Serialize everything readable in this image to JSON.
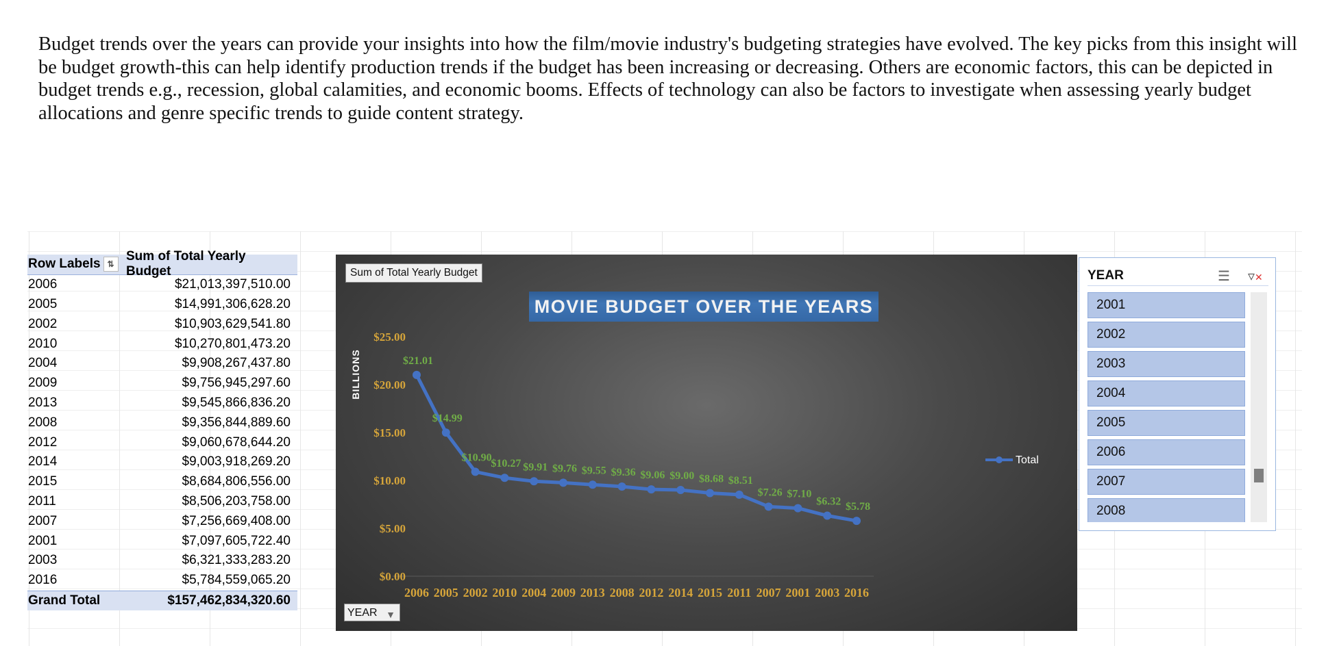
{
  "intro_text": "Budget trends over the years can provide your insights into how the film/movie industry's budgeting strategies have evolved. The key picks from this insight will be budget growth-this can help identify production trends if the budget has been increasing or decreasing. Others are economic factors, this can be depicted in budget trends e.g., recession, global calamities, and economic booms. Effects of technology can also be factors to investigate when assessing yearly budget allocations and genre specific trends to guide content strategy.",
  "pivot": {
    "header_row_labels": "Row Labels",
    "header_sum": "Sum of Total Yearly Budget",
    "rows": [
      {
        "year": "2006",
        "value": "$21,013,397,510.00"
      },
      {
        "year": "2005",
        "value": "$14,991,306,628.20"
      },
      {
        "year": "2002",
        "value": "$10,903,629,541.80"
      },
      {
        "year": "2010",
        "value": "$10,270,801,473.20"
      },
      {
        "year": "2004",
        "value": "$9,908,267,437.80"
      },
      {
        "year": "2009",
        "value": "$9,756,945,297.60"
      },
      {
        "year": "2013",
        "value": "$9,545,866,836.20"
      },
      {
        "year": "2008",
        "value": "$9,356,844,889.60"
      },
      {
        "year": "2012",
        "value": "$9,060,678,644.20"
      },
      {
        "year": "2014",
        "value": "$9,003,918,269.20"
      },
      {
        "year": "2015",
        "value": "$8,684,806,556.00"
      },
      {
        "year": "2011",
        "value": "$8,506,203,758.00"
      },
      {
        "year": "2007",
        "value": "$7,256,669,408.00"
      },
      {
        "year": "2001",
        "value": "$7,097,605,722.40"
      },
      {
        "year": "2003",
        "value": "$6,321,333,283.20"
      },
      {
        "year": "2016",
        "value": "$5,784,559,065.20"
      }
    ],
    "grand_total_label": "Grand Total",
    "grand_total_value": "$157,462,834,320.60"
  },
  "chart_field_button": "Sum of Total Yearly Budget",
  "chart_axis_field_button": "YEAR",
  "chart_data": {
    "type": "line",
    "title": "MOVIE BUDGET OVER THE YEARS",
    "ylabel": "BILLIONS",
    "xlabel": "",
    "categories": [
      "2006",
      "2005",
      "2002",
      "2010",
      "2004",
      "2009",
      "2013",
      "2008",
      "2012",
      "2014",
      "2015",
      "2011",
      "2007",
      "2001",
      "2003",
      "2016"
    ],
    "series": [
      {
        "name": "Total",
        "values": [
          21.01,
          14.99,
          10.9,
          10.27,
          9.91,
          9.76,
          9.55,
          9.36,
          9.06,
          9.0,
          8.68,
          8.51,
          7.26,
          7.1,
          6.32,
          5.78
        ]
      }
    ],
    "data_labels": [
      "$21.01",
      "$14.99",
      "$10.90",
      "$10.27",
      "$9.91",
      "$9.76",
      "$9.55",
      "$9.36",
      "$9.06",
      "$9.00",
      "$8.68",
      "$8.51",
      "$7.26",
      "$7.10",
      "$6.32",
      "$5.78"
    ],
    "y_ticks": [
      "$0.00",
      "$5.00",
      "$10.00",
      "$15.00",
      "$20.00",
      "$25.00"
    ],
    "ylim": [
      0,
      25
    ],
    "grid": false,
    "legend_position": "right",
    "colors": {
      "line": "#4472c4",
      "data_label": "#70ad47",
      "axis_label": "#d6a53a"
    }
  },
  "slicer": {
    "title": "YEAR",
    "items": [
      "2001",
      "2002",
      "2003",
      "2004",
      "2005",
      "2006",
      "2007",
      "2008"
    ]
  }
}
